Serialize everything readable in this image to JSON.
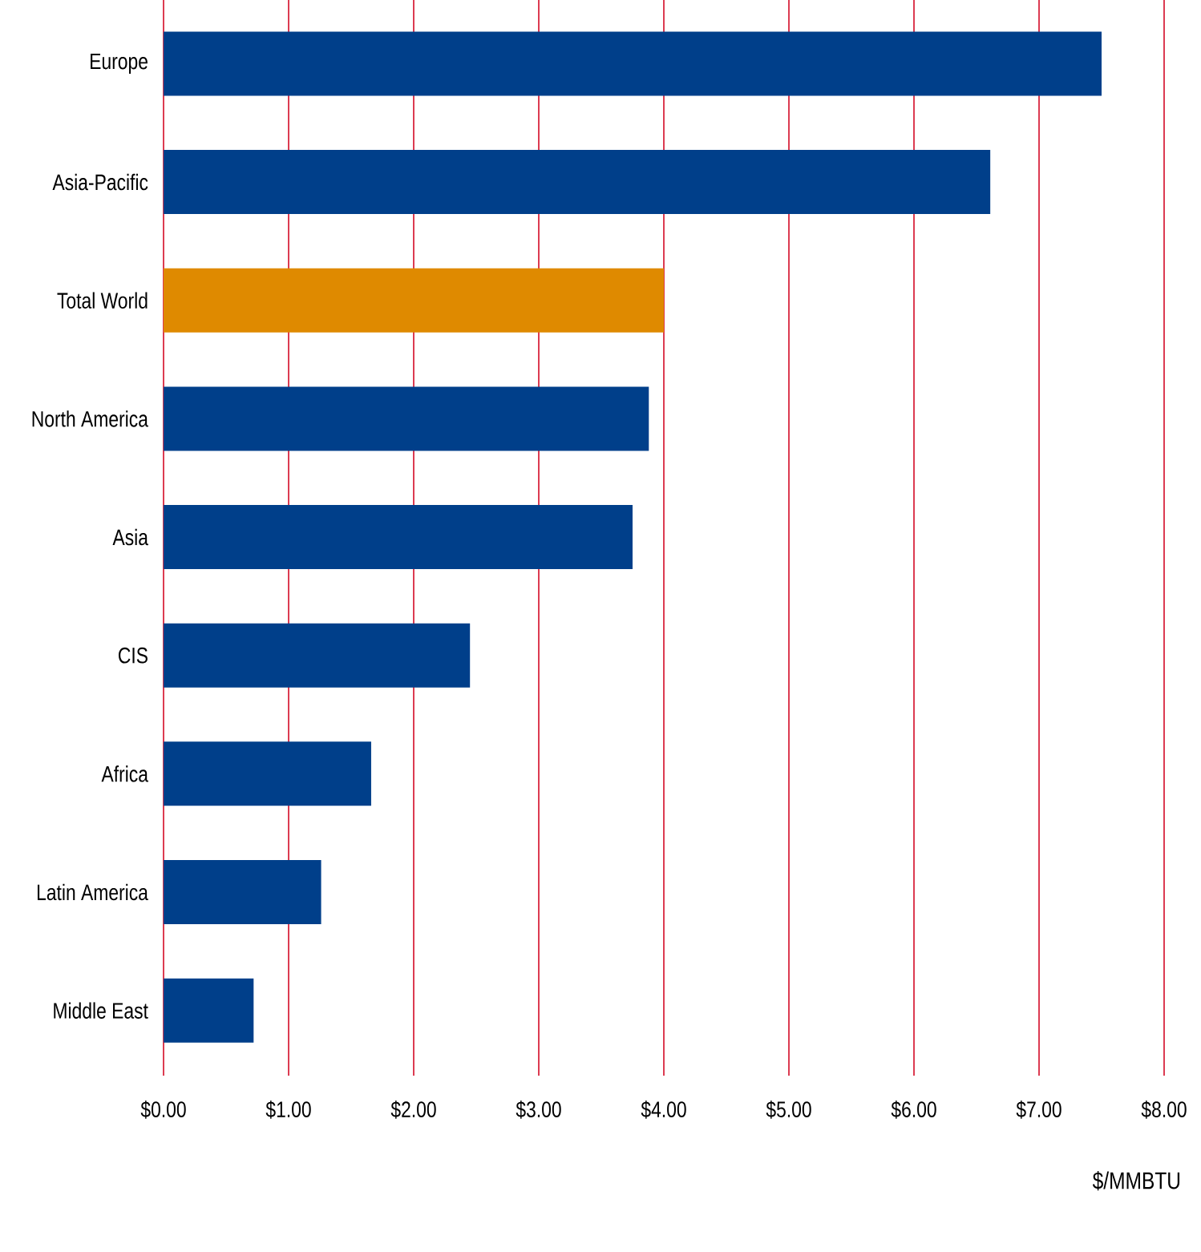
{
  "chart_data": {
    "type": "bar",
    "orientation": "horizontal",
    "xlabel": "$/MMBTU",
    "categories": [
      "Europe",
      "Asia-Pacific",
      "Total World",
      "North America",
      "Asia",
      "CIS",
      "Africa",
      "Latin America",
      "Middle East"
    ],
    "values": [
      7.5,
      6.61,
      4.0,
      3.88,
      3.75,
      2.45,
      1.66,
      1.26,
      0.72
    ],
    "colors": [
      "#003f8a",
      "#003f8a",
      "#df8a00",
      "#003f8a",
      "#003f8a",
      "#003f8a",
      "#003f8a",
      "#003f8a",
      "#003f8a"
    ],
    "xlim": [
      0,
      8
    ],
    "xticks": [
      {
        "value": 0,
        "label": "$0.00"
      },
      {
        "value": 1,
        "label": "$1.00"
      },
      {
        "value": 2,
        "label": "$2.00"
      },
      {
        "value": 3,
        "label": "$3.00"
      },
      {
        "value": 4,
        "label": "$4.00"
      },
      {
        "value": 5,
        "label": "$5.00"
      },
      {
        "value": 6,
        "label": "$6.00"
      },
      {
        "value": 7,
        "label": "$7.00"
      },
      {
        "value": 8,
        "label": "$8.00"
      }
    ],
    "grid": "x"
  }
}
